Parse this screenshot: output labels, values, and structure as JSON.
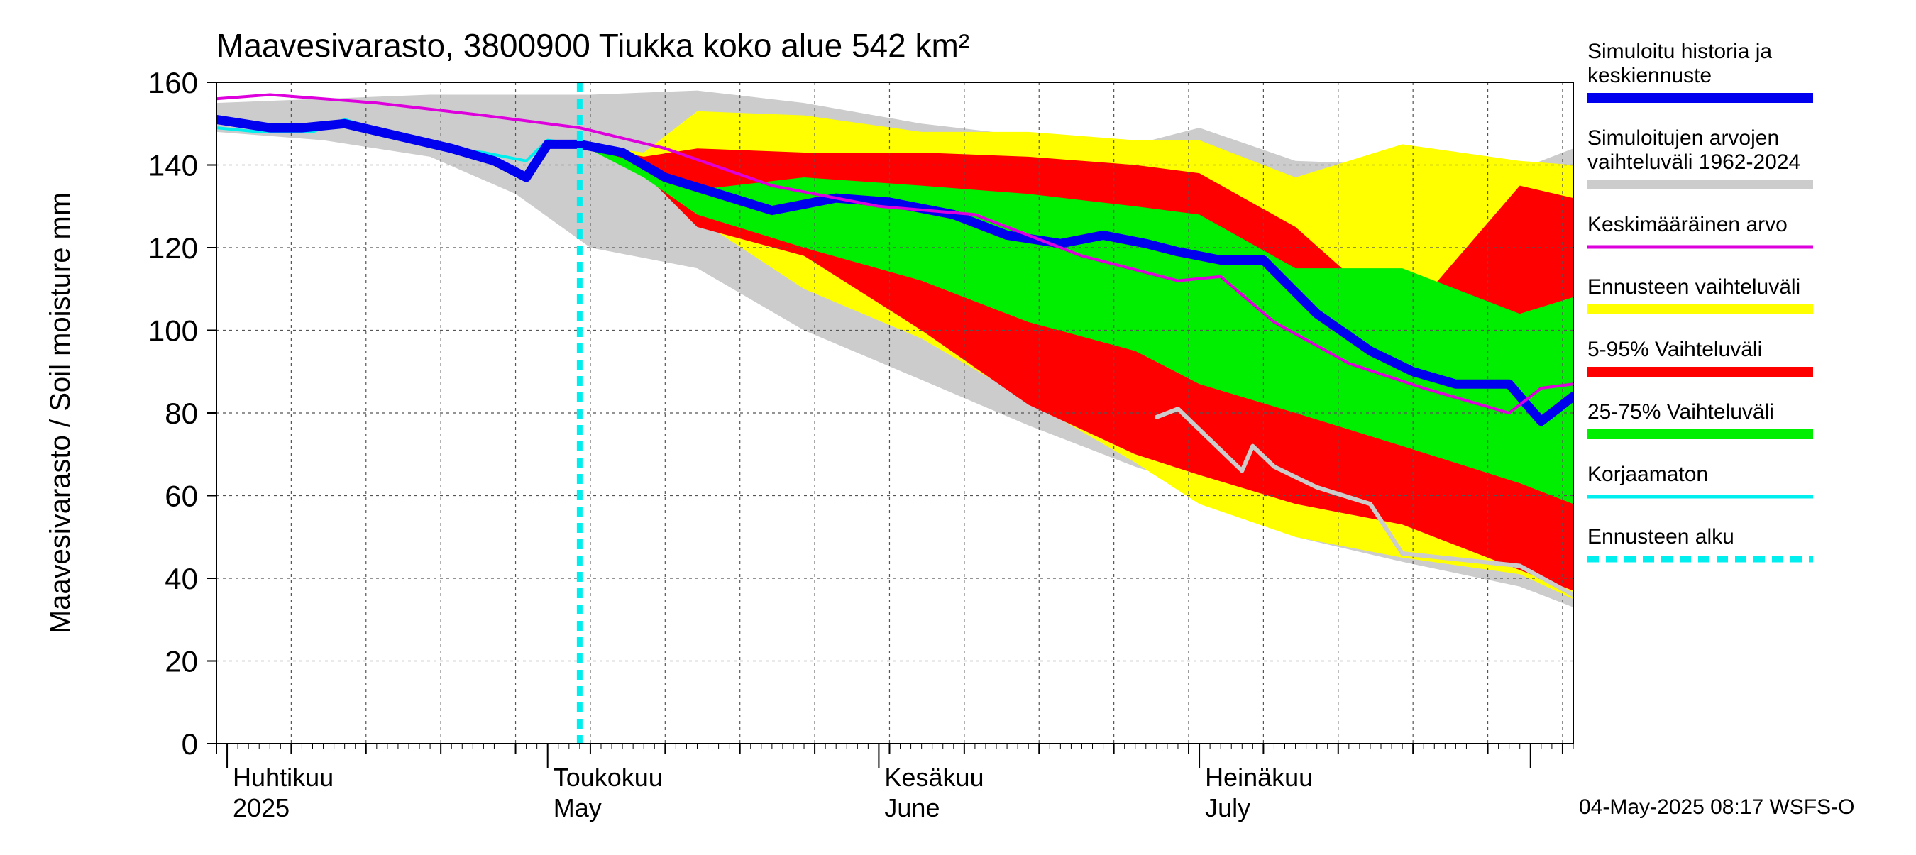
{
  "chart_data": {
    "type": "area",
    "title": "Maavesivarasto, 3800900 Tiukka koko alue 542 km²",
    "ylabel": "Maavesivarasto / Soil moisture   mm",
    "ylim": [
      0,
      160
    ],
    "yticks": [
      0,
      20,
      40,
      60,
      80,
      100,
      120,
      140,
      160
    ],
    "grid": true,
    "x_start": "2025-03-31",
    "x_end": "2025-08-05",
    "forecast_start": "2025-05-04",
    "month_labels": [
      {
        "date": "2025-04-01",
        "fi": "Huhtikuu",
        "en": "2025"
      },
      {
        "date": "2025-05-01",
        "fi": "Toukokuu",
        "en": "May"
      },
      {
        "date": "2025-06-01",
        "fi": "Kesäkuu",
        "en": "June"
      },
      {
        "date": "2025-07-01",
        "fi": "Heinäkuu",
        "en": "July"
      }
    ],
    "footer": "04-May-2025 08:17 WSFS-O",
    "legend": [
      {
        "label": "Simuloitu historia ja keskiennuste",
        "color": "#0000ee",
        "style": "thick"
      },
      {
        "label": "Simuloitujen arvojen vaihteluväli 1962-2024",
        "color": "#cccccc",
        "style": "thick"
      },
      {
        "label": "Keskimääräinen arvo",
        "color": "#dd00dd",
        "style": "thin"
      },
      {
        "label": "Ennusteen vaihteluväli",
        "color": "#ffff00",
        "style": "thick"
      },
      {
        "label": "5-95% Vaihteluväli",
        "color": "#ff0000",
        "style": "thick"
      },
      {
        "label": "25-75% Vaihteluväli",
        "color": "#00ee00",
        "style": "thick"
      },
      {
        "label": "Korjaamaton",
        "color": "#00eeee",
        "style": "thin"
      },
      {
        "label": "Ennusteen alku",
        "color": "#00eeee",
        "style": "dashed"
      }
    ],
    "series": {
      "hist_range": {
        "name": "Simuloitujen arvojen vaihteluväli 1962-2024",
        "color": "#cccccc",
        "x": [
          "2025-03-31",
          "2025-04-10",
          "2025-04-20",
          "2025-04-28",
          "2025-05-05",
          "2025-05-15",
          "2025-05-25",
          "2025-06-05",
          "2025-06-15",
          "2025-06-25",
          "2025-07-01",
          "2025-07-10",
          "2025-07-20",
          "2025-07-31",
          "2025-08-05"
        ],
        "upper": [
          155,
          156,
          157,
          157,
          157,
          158,
          155,
          150,
          147,
          145,
          149,
          141,
          140,
          139,
          144
        ],
        "lower": [
          148,
          146,
          142,
          133,
          120,
          115,
          100,
          88,
          77,
          67,
          62,
          50,
          44,
          38,
          33
        ]
      },
      "forecast_range": {
        "name": "Ennusteen vaihteluväli",
        "color": "#ffff00",
        "x": [
          "2025-05-04",
          "2025-05-10",
          "2025-05-15",
          "2025-05-25",
          "2025-06-05",
          "2025-06-15",
          "2025-06-25",
          "2025-07-01",
          "2025-07-10",
          "2025-07-20",
          "2025-07-31",
          "2025-08-05"
        ],
        "upper": [
          145,
          143,
          153,
          152,
          148,
          148,
          146,
          146,
          137,
          145,
          141,
          140
        ],
        "lower": [
          145,
          140,
          127,
          110,
          98,
          83,
          68,
          58,
          50,
          45,
          41,
          35
        ]
      },
      "p5_95": {
        "name": "5-95% Vaihteluväli",
        "color": "#ff0000",
        "x": [
          "2025-05-04",
          "2025-05-10",
          "2025-05-15",
          "2025-05-25",
          "2025-06-05",
          "2025-06-15",
          "2025-06-25",
          "2025-07-01",
          "2025-07-10",
          "2025-07-20",
          "2025-07-31",
          "2025-08-05"
        ],
        "upper": [
          145,
          142,
          144,
          143,
          143,
          142,
          140,
          138,
          125,
          102,
          135,
          132
        ],
        "lower": [
          145,
          138,
          125,
          118,
          100,
          82,
          70,
          65,
          58,
          53,
          42,
          37
        ]
      },
      "p25_75": {
        "name": "25-75% Vaihteluväli",
        "color": "#00ee00",
        "x": [
          "2025-05-04",
          "2025-05-10",
          "2025-05-15",
          "2025-05-25",
          "2025-06-05",
          "2025-06-15",
          "2025-06-25",
          "2025-07-01",
          "2025-07-10",
          "2025-07-20",
          "2025-07-31",
          "2025-08-05"
        ],
        "upper": [
          145,
          140,
          134,
          137,
          135,
          133,
          130,
          128,
          115,
          115,
          104,
          108
        ],
        "lower": [
          145,
          137,
          128,
          120,
          112,
          102,
          95,
          87,
          80,
          72,
          63,
          58
        ]
      },
      "median": {
        "name": "Simuloitu historia ja keskiennuste",
        "color": "#0000ee",
        "x": [
          "2025-03-31",
          "2025-04-05",
          "2025-04-08",
          "2025-04-12",
          "2025-04-17",
          "2025-04-22",
          "2025-04-26",
          "2025-04-29",
          "2025-05-01",
          "2025-05-04",
          "2025-05-08",
          "2025-05-12",
          "2025-05-17",
          "2025-05-22",
          "2025-05-28",
          "2025-06-02",
          "2025-06-08",
          "2025-06-13",
          "2025-06-18",
          "2025-06-22",
          "2025-06-26",
          "2025-06-29",
          "2025-07-03",
          "2025-07-07",
          "2025-07-12",
          "2025-07-17",
          "2025-07-21",
          "2025-07-25",
          "2025-07-30",
          "2025-08-02",
          "2025-08-05"
        ],
        "values": [
          151,
          149,
          149,
          150,
          147,
          144,
          141,
          137,
          145,
          145,
          143,
          137,
          133,
          129,
          132,
          131,
          128,
          123,
          121,
          123,
          121,
          119,
          117,
          117,
          104,
          95,
          90,
          87,
          87,
          78,
          84
        ]
      },
      "mean": {
        "name": "Keskimääräinen arvo",
        "color": "#dd00dd",
        "x": [
          "2025-03-31",
          "2025-04-05",
          "2025-04-15",
          "2025-04-25",
          "2025-05-04",
          "2025-05-12",
          "2025-05-22",
          "2025-06-01",
          "2025-06-10",
          "2025-06-20",
          "2025-06-29",
          "2025-07-03",
          "2025-07-08",
          "2025-07-15",
          "2025-07-22",
          "2025-07-30",
          "2025-08-02",
          "2025-08-05"
        ],
        "values": [
          156,
          157,
          155,
          152,
          149,
          144,
          135,
          130,
          128,
          118,
          112,
          113,
          102,
          92,
          86,
          80,
          86,
          87
        ]
      },
      "uncorrected": {
        "name": "Korjaamaton",
        "color": "#00eeee",
        "x": [
          "2025-03-31",
          "2025-04-04",
          "2025-04-09",
          "2025-04-12",
          "2025-04-17",
          "2025-04-22",
          "2025-04-25",
          "2025-04-29",
          "2025-05-01",
          "2025-05-04"
        ],
        "values": [
          149,
          148,
          148,
          151,
          147,
          144,
          143,
          141,
          146,
          145
        ]
      },
      "min_trace": {
        "name": "",
        "color": "#cccccc",
        "x": [
          "2025-06-27",
          "2025-06-29",
          "2025-07-01",
          "2025-07-05",
          "2025-07-06",
          "2025-07-08",
          "2025-07-12",
          "2025-07-17",
          "2025-07-20",
          "2025-07-31",
          "2025-08-05"
        ],
        "values": [
          79,
          81,
          76,
          66,
          72,
          67,
          62,
          58,
          46,
          43,
          36
        ]
      }
    }
  }
}
